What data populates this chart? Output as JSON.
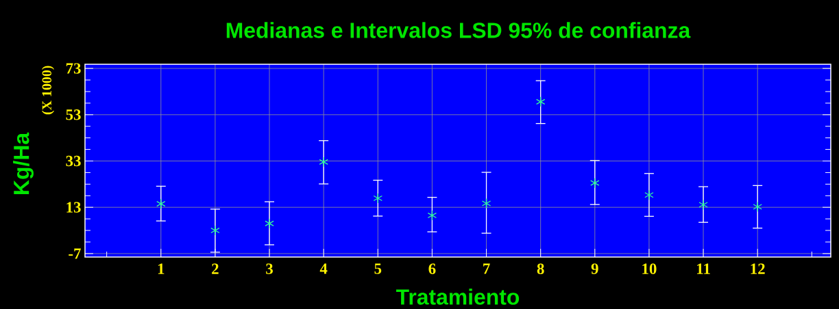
{
  "chart_data": {
    "type": "scatter",
    "title": "Medianas e Intervalos LSD 95% de confianza",
    "xlabel": "Tratamiento",
    "ylabel": "Kg/Ha",
    "annotations": [
      "(X 1000)"
    ],
    "x": [
      1,
      2,
      3,
      4,
      5,
      6,
      7,
      8,
      9,
      10,
      11,
      12
    ],
    "series": [
      {
        "color": "#33ff99",
        "values": [
          14.5,
          3.0,
          6.0,
          32.6,
          16.9,
          9.5,
          14.7,
          58.6,
          23.5,
          18.3,
          14.1,
          13.2
        ],
        "errors": [
          [
            7.1,
            22.1
          ],
          [
            -6.4,
            12.2
          ],
          [
            -3.2,
            15.4
          ],
          [
            23.1,
            41.8
          ],
          [
            9.2,
            24.7
          ],
          [
            2.4,
            17.3
          ],
          [
            1.8,
            28.1
          ],
          [
            49.2,
            67.7
          ],
          [
            14.2,
            33.2
          ],
          [
            9.1,
            27.6
          ],
          [
            6.5,
            21.9
          ],
          [
            4.0,
            22.4
          ]
        ]
      }
    ],
    "marker": "cross",
    "grid": true,
    "xlim": [
      -0.4,
      13.35
    ],
    "xticks": [
      {
        "value": 0,
        "label": null
      },
      1,
      2,
      3,
      4,
      5,
      6,
      7,
      8,
      9,
      10,
      11,
      12,
      {
        "value": 13,
        "label": null
      }
    ],
    "ylim": [
      -8.5,
      74.8
    ],
    "yticks": [
      -7,
      {
        "value": -2,
        "label": null
      },
      {
        "value": 3,
        "label": null
      },
      {
        "value": 8,
        "label": null
      },
      13,
      {
        "value": 18,
        "label": null
      },
      {
        "value": 23,
        "label": null
      },
      {
        "value": 28,
        "label": null
      },
      33,
      {
        "value": 38,
        "label": null
      },
      {
        "value": 43,
        "label": null
      },
      {
        "value": 48,
        "label": null
      },
      53,
      {
        "value": 58,
        "label": null
      },
      {
        "value": 63,
        "label": null
      },
      {
        "value": 68,
        "label": null
      },
      73
    ]
  }
}
